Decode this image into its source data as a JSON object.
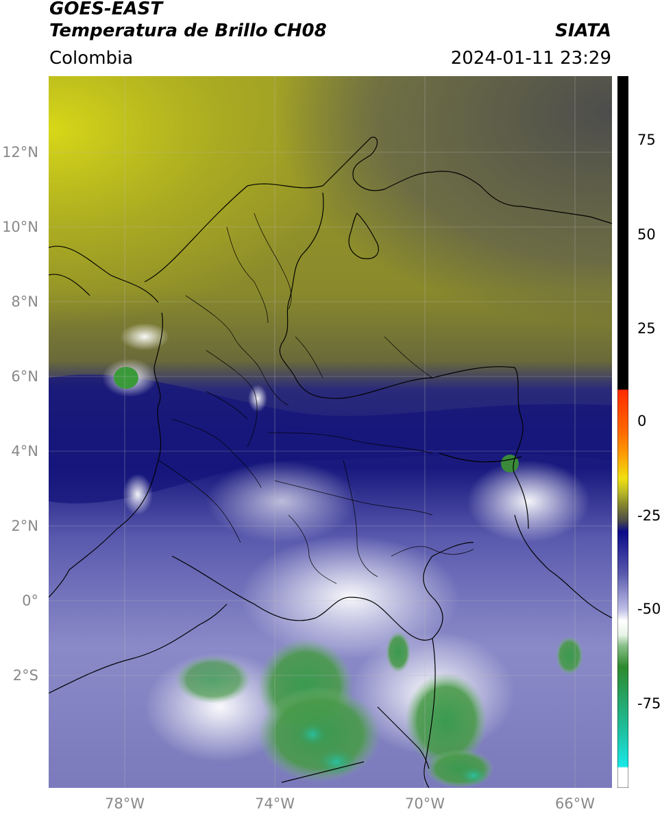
{
  "header": {
    "satellite": "GOES-EAST",
    "product": "Temperatura de Brillo CH08",
    "brand": "SIATA",
    "region": "Colombia",
    "datetime": "2024-01-11 23:29"
  },
  "axes": {
    "lat_labels": [
      "12°N",
      "10°N",
      "8°N",
      "6°N",
      "4°N",
      "2°N",
      "0°",
      "2°S"
    ],
    "lon_labels": [
      "78°W",
      "74°W",
      "70°W",
      "66°W"
    ]
  },
  "colorbar": {
    "tick_labels": [
      "75",
      "50",
      "25",
      "0",
      "-25",
      "-50",
      "-75"
    ],
    "colors": {
      "black": "#000000",
      "red": "#ff2a00",
      "orange": "#ff9a00",
      "yellow": "#e8e010",
      "olive": "#8a8a1a",
      "gray": "#4a4a4a",
      "navy": "#0a0a8a",
      "lavender": "#8a8ac8",
      "white": "#ffffff",
      "green": "#2d8a2d",
      "teal": "#1fc0a0",
      "cyan": "#19e8e8"
    }
  },
  "map_colors": {
    "yellow_cloud": "#b5b520",
    "olive_region": "#8d8d2a",
    "dark_gray": "#555555",
    "navy_band": "#16167e",
    "lavender_south": "#7e7ebe",
    "white_cloud": "#f0f0ff",
    "green_cold": "#3c963c",
    "teal_cold": "#2ab894"
  }
}
